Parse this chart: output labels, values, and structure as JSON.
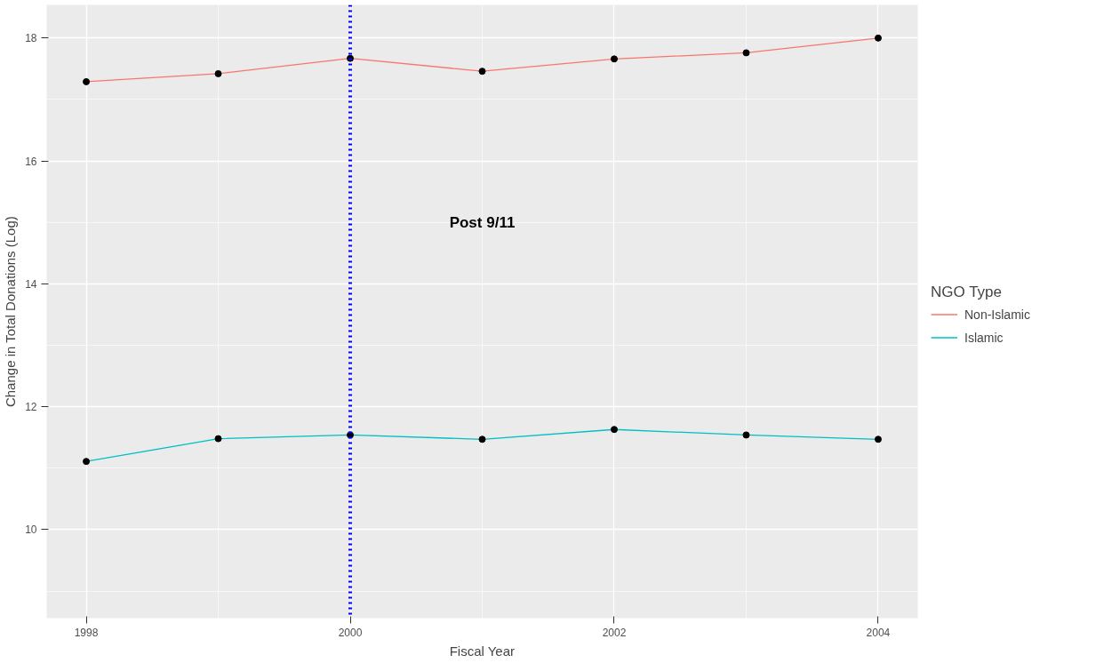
{
  "chart_data": {
    "type": "line",
    "xlabel": "Fiscal Year",
    "ylabel": "Change in Total Donations (Log)",
    "legend_title": "NGO Type",
    "x": [
      1998,
      1999,
      2000,
      2001,
      2002,
      2003,
      2004
    ],
    "series": [
      {
        "name": "Non-Islamic",
        "color": "#f8766d",
        "values": [
          17.29,
          17.42,
          17.67,
          17.46,
          17.66,
          17.76,
          18.0
        ]
      },
      {
        "name": "Islamic",
        "color": "#00bfc4",
        "values": [
          11.11,
          11.48,
          11.54,
          11.47,
          11.63,
          11.54,
          11.47
        ]
      }
    ],
    "xlim": [
      1997.7,
      2004.3
    ],
    "ylim": [
      8.56,
      18.54
    ],
    "xticks": [
      1998,
      2000,
      2002,
      2004
    ],
    "yticks": [
      10,
      12,
      14,
      16,
      18
    ],
    "ref_lines": [
      {
        "axis": "x",
        "value": 2000,
        "color": "#0000ff",
        "line_style": "dotted"
      }
    ],
    "annotations": [
      "Post 9/11"
    ],
    "grid": true,
    "legend": "right",
    "marker": "circle",
    "line_style": "solid"
  }
}
